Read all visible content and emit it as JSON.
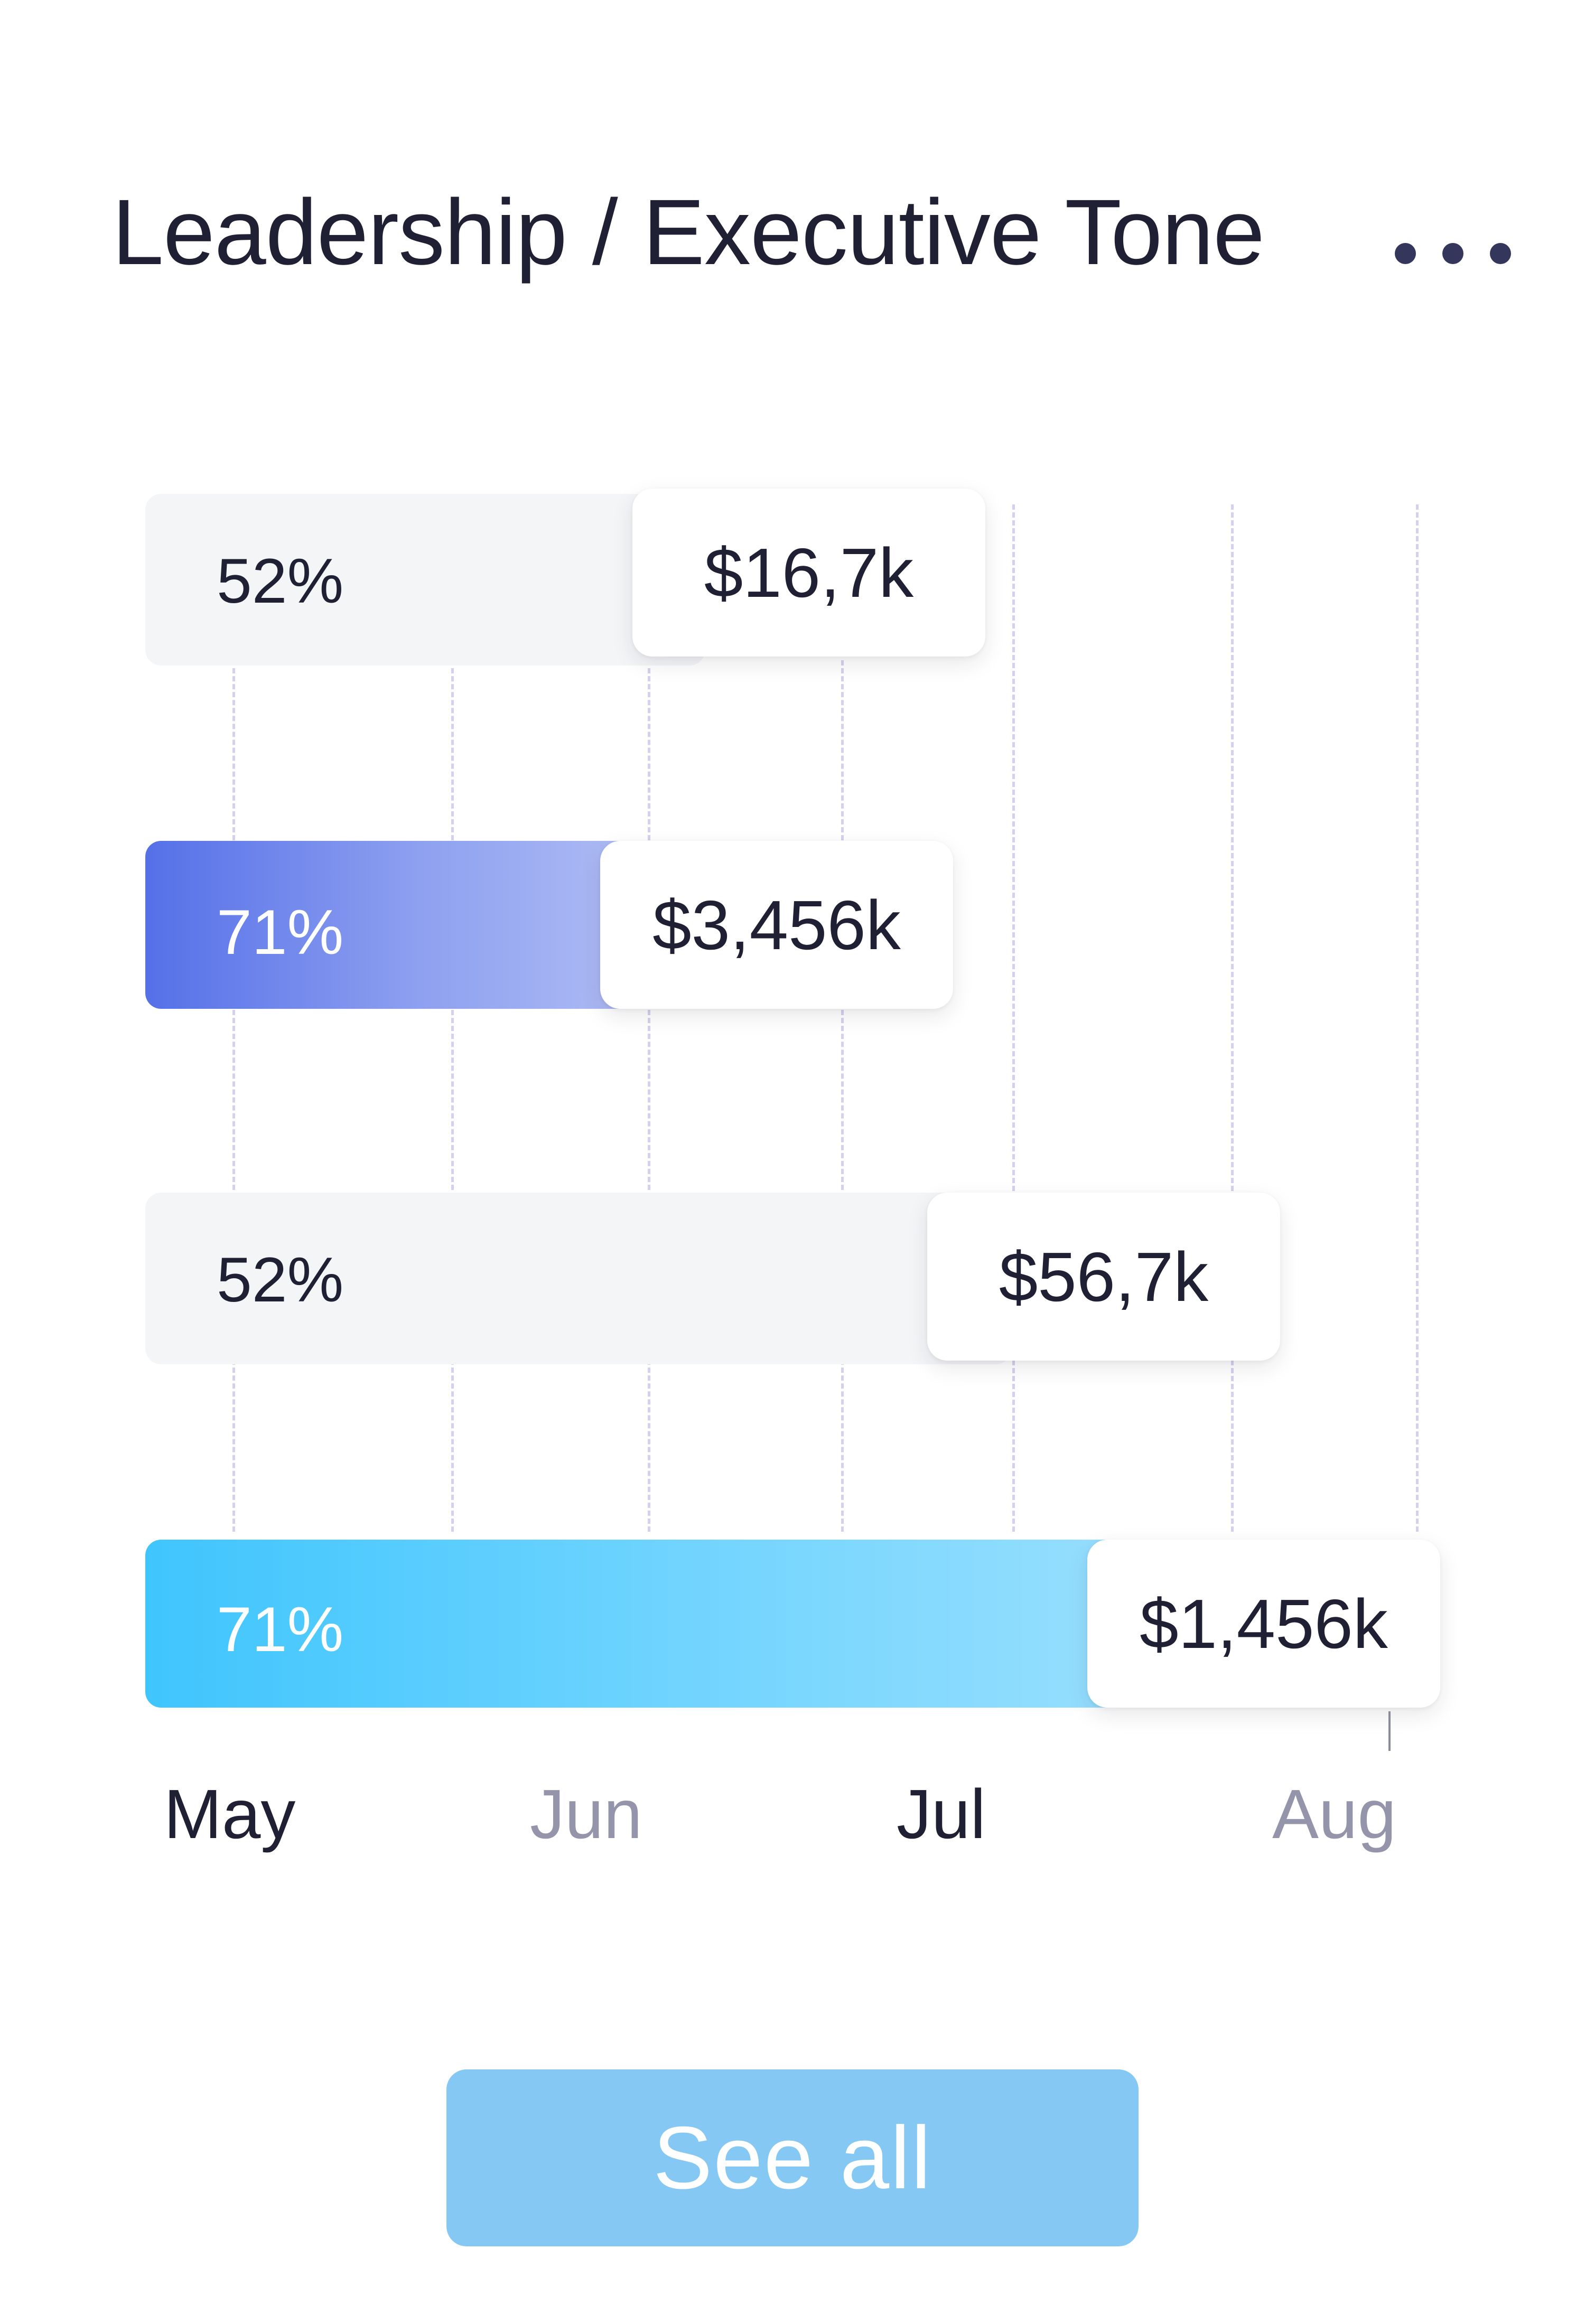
{
  "header": {
    "title": "Leadership / Executive Tone",
    "more_icon": "more-horizontal-icon"
  },
  "chart_data": {
    "type": "bar",
    "orientation": "horizontal",
    "x_axis": {
      "labels": [
        "May",
        "Jun",
        "Jul",
        "Aug"
      ],
      "label_colors": [
        "#1f2033",
        "#9495aa",
        "#1f2033",
        "#9495aa"
      ]
    },
    "grid": "vertical dashed",
    "bars": [
      {
        "percent_label": "52%",
        "value_label": "$16,7k",
        "style": "plain",
        "color": "#f4f5f7",
        "progress": 0.5
      },
      {
        "percent_label": "71%",
        "value_label": "$3,456k",
        "style": "gradient",
        "color_start": "#5570e8",
        "color_end": "#b7c3f5",
        "progress": 0.5
      },
      {
        "percent_label": "52%",
        "value_label": "$56,7k",
        "style": "plain",
        "color": "#f4f5f7",
        "progress": 0.8
      },
      {
        "percent_label": "71%",
        "value_label": "$1,456k",
        "style": "gradient",
        "color_start": "#3fc5fd",
        "color_end": "#a8e3fe",
        "progress": 1.0
      }
    ]
  },
  "footer": {
    "see_all_label": "See all",
    "button_color": "#86c8f4"
  }
}
